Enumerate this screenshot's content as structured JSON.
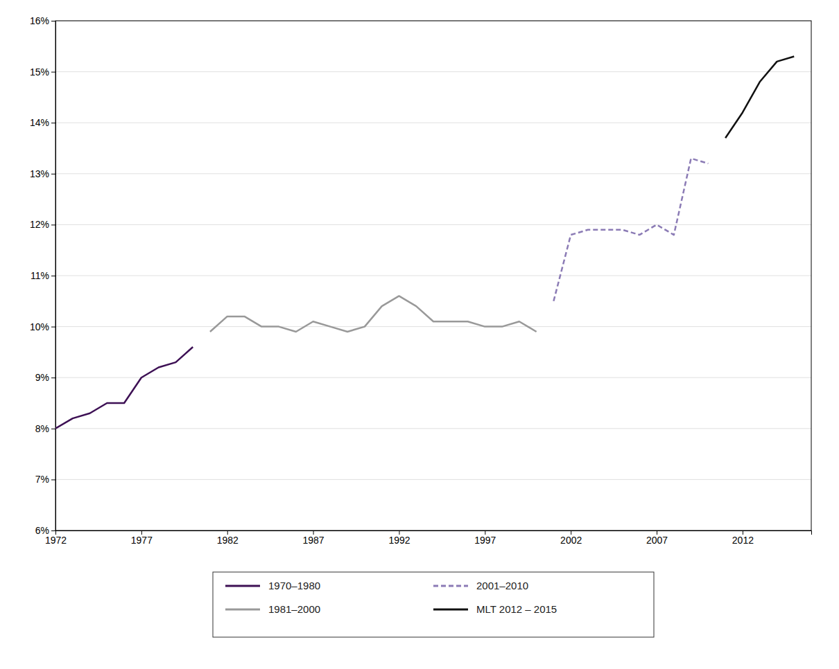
{
  "chart_data": {
    "type": "line",
    "series": [
      {
        "name": "1970–1980",
        "color": "#3D1054",
        "line_style": "solid",
        "x": [
          1972,
          1973,
          1974,
          1975,
          1976,
          1977,
          1978,
          1979,
          1980
        ],
        "values": [
          0.08,
          0.082,
          0.083,
          0.085,
          0.085,
          0.09,
          0.092,
          0.093,
          0.096
        ]
      },
      {
        "name": "1981–2000",
        "color": "#999999",
        "line_style": "solid",
        "x": [
          1981,
          1982,
          1983,
          1984,
          1985,
          1986,
          1987,
          1988,
          1989,
          1990,
          1991,
          1992,
          1993,
          1994,
          1995,
          1996,
          1997,
          1998,
          1999,
          2000
        ],
        "values": [
          0.099,
          0.102,
          0.102,
          0.1,
          0.1,
          0.099,
          0.101,
          0.1,
          0.099,
          0.1,
          0.104,
          0.106,
          0.104,
          0.101,
          0.101,
          0.101,
          0.1,
          0.1,
          0.101,
          0.099
        ]
      },
      {
        "name": "2001–2010",
        "color": "#8B7BB5",
        "line_style": "dashed",
        "x": [
          2001,
          2002,
          2003,
          2004,
          2005,
          2006,
          2007,
          2008,
          2009,
          2010
        ],
        "values": [
          0.105,
          0.118,
          0.119,
          0.119,
          0.119,
          0.118,
          0.12,
          0.118,
          0.133,
          0.132
        ]
      },
      {
        "name": "MLT 2012 – 2015",
        "color": "#111111",
        "line_style": "solid",
        "x": [
          2011,
          2012,
          2013,
          2014,
          2015
        ],
        "values": [
          0.137,
          0.142,
          0.148,
          0.152,
          0.153
        ]
      }
    ],
    "xlim": [
      1972,
      2016
    ],
    "xticks": [
      1972,
      1977,
      1982,
      1987,
      1992,
      1997,
      2002,
      2007,
      2012
    ],
    "ylim": [
      0.06,
      0.16
    ],
    "yticks": [
      {
        "value": 0.06,
        "label": "6%"
      },
      {
        "value": 0.07,
        "label": "7%"
      },
      {
        "value": 0.08,
        "label": "8%"
      },
      {
        "value": 0.09,
        "label": "9%"
      },
      {
        "value": 0.1,
        "label": "10%"
      },
      {
        "value": 0.11,
        "label": "11%"
      },
      {
        "value": 0.12,
        "label": "12%"
      },
      {
        "value": 0.13,
        "label": "13%"
      },
      {
        "value": 0.14,
        "label": "14%"
      },
      {
        "value": 0.15,
        "label": "15%"
      },
      {
        "value": 0.16,
        "label": "16%"
      }
    ],
    "grid": true,
    "legend": "bottom"
  }
}
